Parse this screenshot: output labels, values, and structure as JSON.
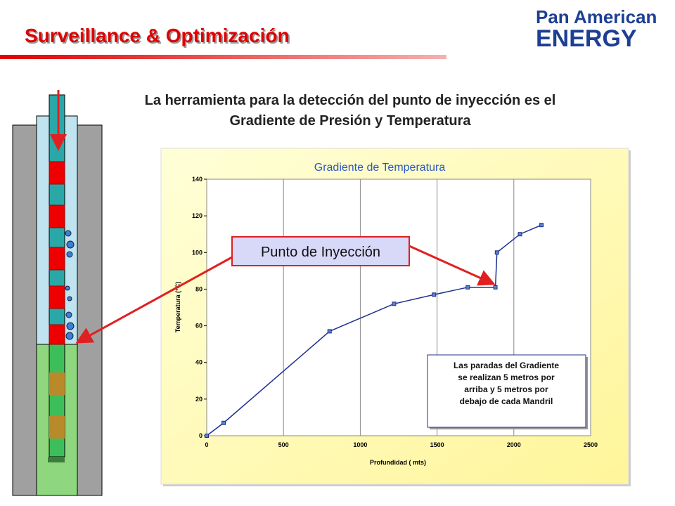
{
  "header": {
    "title": "Surveillance & Optimización",
    "logo": [
      "Pan American",
      "ENERGY"
    ],
    "subtitle": [
      "La herramienta para la detección del punto de inyección es el",
      "Gradiente de Presión y Temperatura"
    ]
  },
  "chart_data": {
    "type": "line",
    "title": "Gradiente de Temperatura",
    "x_label": "Profundidad ( mts)",
    "y_label": "Temperatura (°C)",
    "x": [
      0,
      110,
      800,
      1220,
      1480,
      1700,
      1880,
      1890,
      2040,
      2180
    ],
    "values": [
      0,
      7,
      57,
      72,
      77,
      81,
      81,
      100,
      110,
      115
    ],
    "color": "#1f2f8f",
    "xlim": [
      0,
      2500
    ],
    "xticks": [
      0,
      500,
      1000,
      1500,
      2000,
      2500
    ],
    "ylim": [
      0,
      140
    ],
    "yticks": [
      0,
      20,
      40,
      60,
      80,
      100,
      120,
      140
    ],
    "grid": "x",
    "annotations": {
      "callout": "Punto de Inyección",
      "note": [
        "Las paradas del Gradiente",
        "se realizan 5 metros por",
        "arriba y 5 metros por",
        "debajo de cada Mandril"
      ]
    }
  }
}
